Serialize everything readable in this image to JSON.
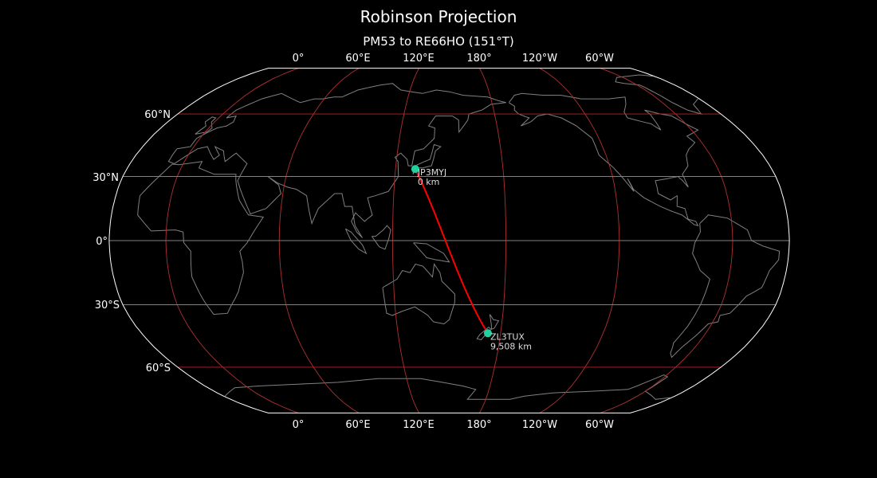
{
  "title": "Robinson Projection",
  "subtitle": "PM53 to RE66HO (151°T)",
  "map": {
    "projection": "Robinson",
    "central_longitude": 150,
    "background": "#000000",
    "coastline_color": "#808080",
    "graticule_color": "#b03030",
    "parallel_color": "#808080",
    "path_color": "#ff0000",
    "marker_color": "#20d0a0",
    "lon_ticks": [
      "0°",
      "60°E",
      "120°E",
      "180°",
      "120°W",
      "60°W"
    ],
    "lat_ticks": [
      "60°N",
      "30°N",
      "0°",
      "30°S",
      "60°S"
    ]
  },
  "stations": [
    {
      "call": "JP3MYJ",
      "distance": "0 km",
      "lat": 33.5,
      "lon": 131.0
    },
    {
      "call": "ZL3TUX",
      "distance": "9,508 km",
      "lat": -43.4,
      "lon": 172.6
    }
  ]
}
